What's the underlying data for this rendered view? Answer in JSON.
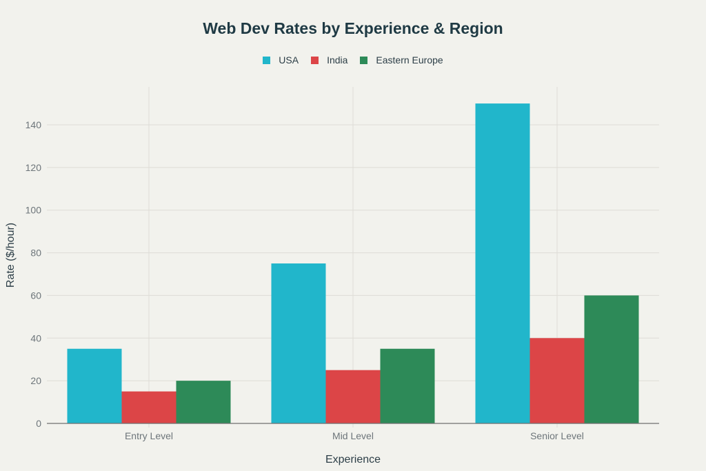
{
  "chart_data": {
    "type": "bar",
    "title": "Web Dev Rates by Experience & Region",
    "xlabel": "Experience",
    "ylabel": "Rate ($/hour)",
    "categories": [
      "Entry Level",
      "Mid Level",
      "Senior Level"
    ],
    "series": [
      {
        "name": "USA",
        "color": "#21b6cb",
        "values": [
          35,
          75,
          150
        ]
      },
      {
        "name": "India",
        "color": "#dc4547",
        "values": [
          15,
          25,
          40
        ]
      },
      {
        "name": "Eastern Europe",
        "color": "#2d8a58",
        "values": [
          20,
          35,
          60
        ]
      }
    ],
    "ylim": [
      0,
      157
    ],
    "yticks": [
      0,
      20,
      40,
      60,
      80,
      100,
      120,
      140
    ],
    "grid": true,
    "legend_position": "top-center"
  }
}
